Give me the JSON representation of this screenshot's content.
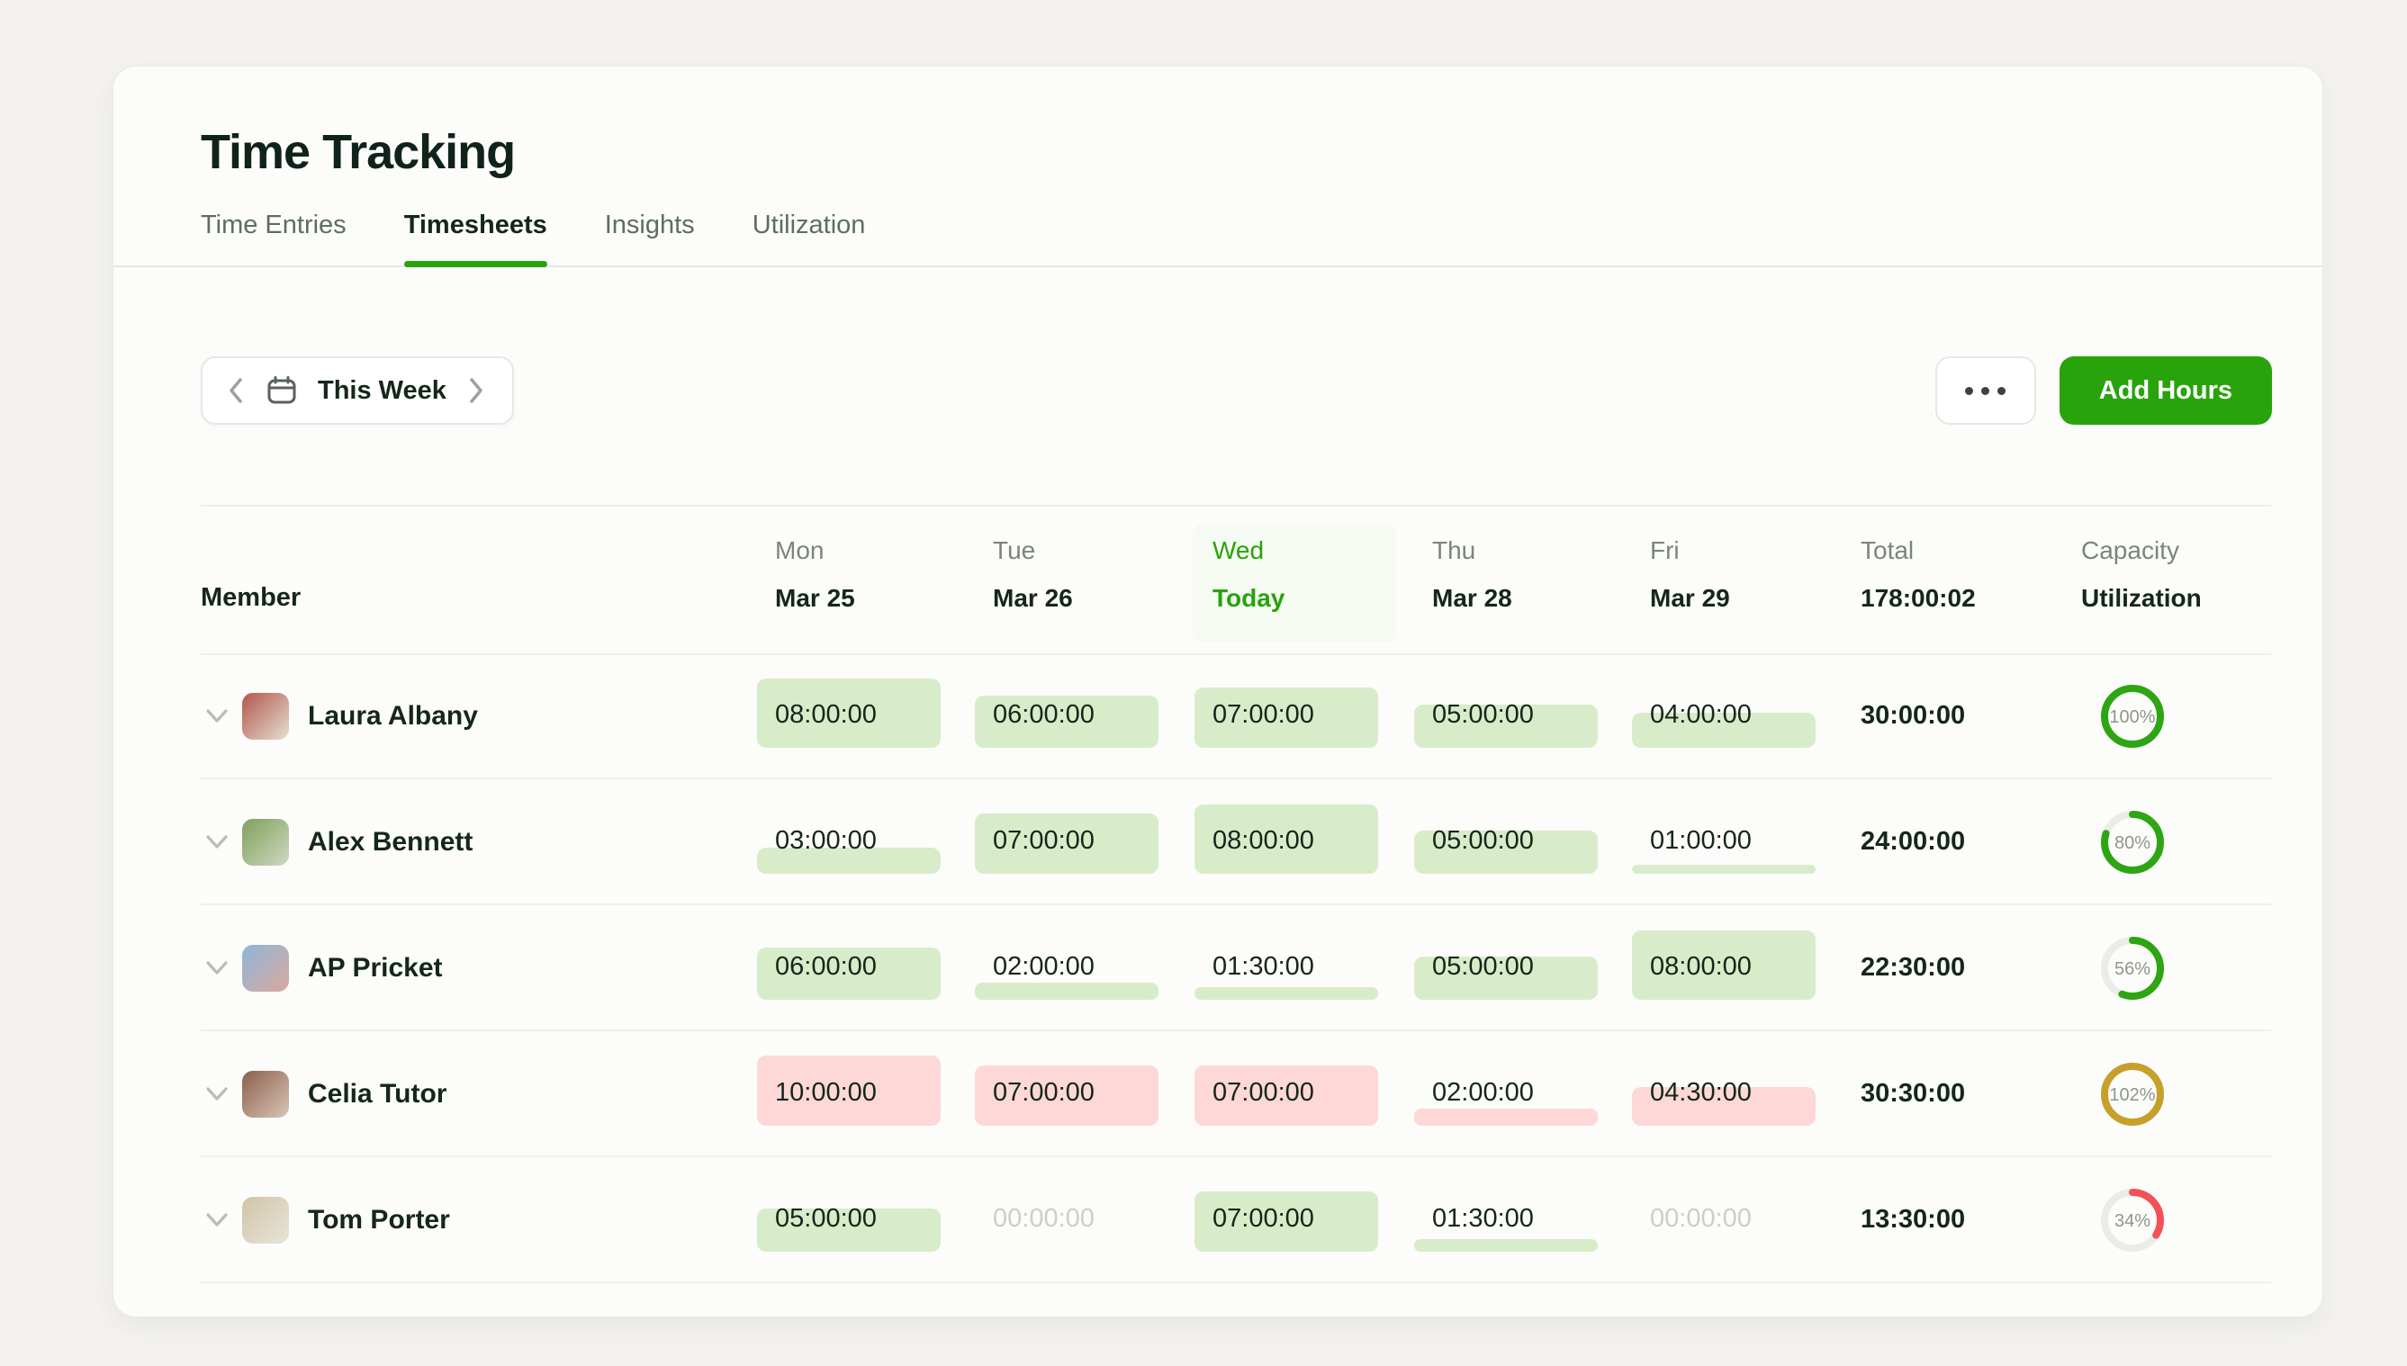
{
  "colors": {
    "accent": "#28a30c",
    "cell_green": "#d8ecc9",
    "cell_pink": "#fdd8d7",
    "ring_green": "#2ea512",
    "ring_gold": "#c7a02c",
    "ring_red": "#f25157",
    "ring_track": "#ebece9"
  },
  "page": {
    "title": "Time Tracking"
  },
  "tabs": [
    {
      "label": "Time Entries",
      "active": false
    },
    {
      "label": "Timesheets",
      "active": true
    },
    {
      "label": "Insights",
      "active": false
    },
    {
      "label": "Utilization",
      "active": false
    }
  ],
  "toolbar": {
    "week_label": "This Week",
    "add_hours_label": "Add Hours"
  },
  "table": {
    "member_header": "Member",
    "days": [
      {
        "name": "Mon",
        "date": "Mar 25",
        "today": false
      },
      {
        "name": "Tue",
        "date": "Mar 26",
        "today": false
      },
      {
        "name": "Wed",
        "date": "Today",
        "today": true
      },
      {
        "name": "Thu",
        "date": "Mar 28",
        "today": false
      },
      {
        "name": "Fri",
        "date": "Mar 29",
        "today": false
      }
    ],
    "total_header": {
      "line1": "Total",
      "line2": "178:00:02"
    },
    "capacity_header": {
      "line1": "Capacity",
      "line2": "Utilization"
    },
    "rows": [
      {
        "name": "Laura Albany",
        "avatar_colors": [
          "#b3574b",
          "#e6ded2"
        ],
        "cells": [
          {
            "value": "08:00:00",
            "hours": 8,
            "tone": "green"
          },
          {
            "value": "06:00:00",
            "hours": 6,
            "tone": "green"
          },
          {
            "value": "07:00:00",
            "hours": 7,
            "tone": "green"
          },
          {
            "value": "05:00:00",
            "hours": 5,
            "tone": "green"
          },
          {
            "value": "04:00:00",
            "hours": 4,
            "tone": "green"
          }
        ],
        "total": "30:00:00",
        "utilization": {
          "percent": 100,
          "color": "#2ea512"
        }
      },
      {
        "name": "Alex Bennett",
        "avatar_colors": [
          "#7fa05c",
          "#cfd8c2"
        ],
        "cells": [
          {
            "value": "03:00:00",
            "hours": 3,
            "tone": "green"
          },
          {
            "value": "07:00:00",
            "hours": 7,
            "tone": "green"
          },
          {
            "value": "08:00:00",
            "hours": 8,
            "tone": "green"
          },
          {
            "value": "05:00:00",
            "hours": 5,
            "tone": "green"
          },
          {
            "value": "01:00:00",
            "hours": 1,
            "tone": "green"
          }
        ],
        "total": "24:00:00",
        "utilization": {
          "percent": 80,
          "color": "#2ea512"
        }
      },
      {
        "name": "AP Pricket",
        "avatar_colors": [
          "#8fb6d9",
          "#d9a8a0"
        ],
        "cells": [
          {
            "value": "06:00:00",
            "hours": 6,
            "tone": "green"
          },
          {
            "value": "02:00:00",
            "hours": 2,
            "tone": "green"
          },
          {
            "value": "01:30:00",
            "hours": 1.5,
            "tone": "green"
          },
          {
            "value": "05:00:00",
            "hours": 5,
            "tone": "green"
          },
          {
            "value": "08:00:00",
            "hours": 8,
            "tone": "green"
          }
        ],
        "total": "22:30:00",
        "utilization": {
          "percent": 56,
          "color": "#2ea512"
        }
      },
      {
        "name": "Celia Tutor",
        "avatar_colors": [
          "#8a5f4a",
          "#d9c6b8"
        ],
        "cells": [
          {
            "value": "10:00:00",
            "hours": 10,
            "tone": "pink"
          },
          {
            "value": "07:00:00",
            "hours": 7,
            "tone": "pink"
          },
          {
            "value": "07:00:00",
            "hours": 7,
            "tone": "pink"
          },
          {
            "value": "02:00:00",
            "hours": 2,
            "tone": "pink"
          },
          {
            "value": "04:30:00",
            "hours": 4.5,
            "tone": "pink"
          }
        ],
        "total": "30:30:00",
        "utilization": {
          "percent": 102,
          "color": "#c7a02c"
        }
      },
      {
        "name": "Tom Porter",
        "avatar_colors": [
          "#cfc5a8",
          "#e9e4d8"
        ],
        "cells": [
          {
            "value": "05:00:00",
            "hours": 5,
            "tone": "green"
          },
          {
            "value": "00:00:00",
            "hours": 0,
            "tone": "zero"
          },
          {
            "value": "07:00:00",
            "hours": 7,
            "tone": "green"
          },
          {
            "value": "01:30:00",
            "hours": 1.5,
            "tone": "green"
          },
          {
            "value": "00:00:00",
            "hours": 0,
            "tone": "zero"
          }
        ],
        "total": "13:30:00",
        "utilization": {
          "percent": 34,
          "color": "#f25157"
        }
      }
    ]
  }
}
